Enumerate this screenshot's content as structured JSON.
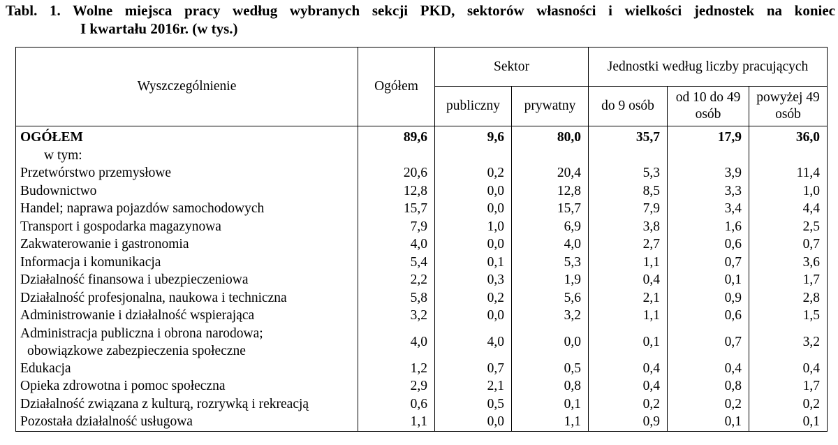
{
  "title": {
    "line1": "Tabl. 1. Wolne miejsca pracy według wybranych sekcji PKD, sektorów własności i wielkości jednostek na koniec",
    "line2": "I kwartału 2016r. (w tys.)"
  },
  "headers": {
    "description": "Wyszczególnienie",
    "total": "Ogółem",
    "sector_group": "Sektor",
    "sector_public": "publiczny",
    "sector_private": "prywatny",
    "size_group": "Jednostki według liczby pracujących",
    "size_small": "do 9 osób",
    "size_medium": "od 10 do 49 osób",
    "size_large": "powyżej 49 osób"
  },
  "total_row": {
    "label": "OGÓŁEM",
    "values": [
      "89,6",
      "9,6",
      "80,0",
      "35,7",
      "17,9",
      "36,0"
    ]
  },
  "subheading": "w tym:",
  "rows": [
    {
      "label": "Przetwórstwo przemysłowe",
      "values": [
        "20,6",
        "0,2",
        "20,4",
        "5,3",
        "3,9",
        "11,4"
      ]
    },
    {
      "label": "Budownictwo",
      "values": [
        "12,8",
        "0,0",
        "12,8",
        "8,5",
        "3,3",
        "1,0"
      ]
    },
    {
      "label": "Handel; naprawa pojazdów samochodowych",
      "values": [
        "15,7",
        "0,0",
        "15,7",
        "7,9",
        "3,4",
        "4,4"
      ]
    },
    {
      "label": "Transport i gospodarka magazynowa",
      "values": [
        "7,9",
        "1,0",
        "6,9",
        "3,8",
        "1,6",
        "2,5"
      ]
    },
    {
      "label": "Zakwaterowanie i gastronomia",
      "values": [
        "4,0",
        "0,0",
        "4,0",
        "2,7",
        "0,6",
        "0,7"
      ]
    },
    {
      "label": "Informacja i komunikacja",
      "values": [
        "5,4",
        "0,1",
        "5,3",
        "1,1",
        "0,7",
        "3,6"
      ]
    },
    {
      "label": "Działalność finansowa i ubezpieczeniowa",
      "values": [
        "2,2",
        "0,3",
        "1,9",
        "0,4",
        "0,1",
        "1,7"
      ]
    },
    {
      "label": "Działalność profesjonalna, naukowa i techniczna",
      "values": [
        "5,8",
        "0,2",
        "5,6",
        "2,1",
        "0,9",
        "2,8"
      ]
    },
    {
      "label": "Administrowanie i działalność wspierająca",
      "values": [
        "3,2",
        "0,0",
        "3,2",
        "1,1",
        "0,6",
        "1,5"
      ]
    },
    {
      "label": "Administracja publiczna i obrona narodowa;",
      "label_cont": "obowiązkowe zabezpieczenia społeczne",
      "values": [
        "4,0",
        "4,0",
        "0,0",
        "0,1",
        "0,7",
        "3,2"
      ]
    },
    {
      "label": "Edukacja",
      "values": [
        "1,2",
        "0,7",
        "0,5",
        "0,4",
        "0,4",
        "0,4"
      ]
    },
    {
      "label": "Opieka zdrowotna i pomoc społeczna",
      "values": [
        "2,9",
        "2,1",
        "0,8",
        "0,4",
        "0,8",
        "1,7"
      ]
    },
    {
      "label": "Działalność związana z kulturą, rozrywką i rekreacją",
      "values": [
        "0,6",
        "0,5",
        "0,1",
        "0,2",
        "0,2",
        "0,2"
      ]
    },
    {
      "label": "Pozostała działalność usługowa",
      "values": [
        "1,1",
        "0,0",
        "1,1",
        "0,9",
        "0,1",
        "0,1"
      ]
    }
  ]
}
